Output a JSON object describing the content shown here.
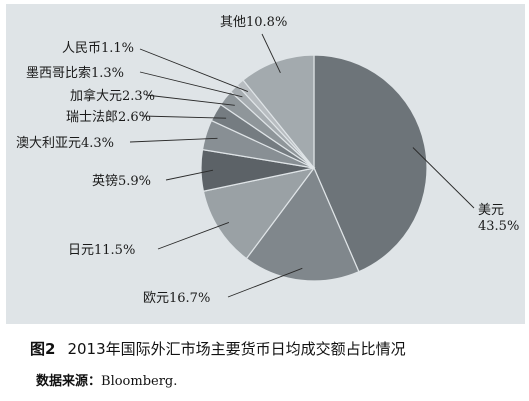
{
  "chart_data": {
    "type": "pie",
    "slices": [
      {
        "name": "美元",
        "value": 43.5,
        "label_lines": [
          "美元",
          "43.5%"
        ],
        "color": "#6d7479"
      },
      {
        "name": "欧元",
        "value": 16.7,
        "label_lines": [
          "欧元16.7%"
        ],
        "color": "#80878c"
      },
      {
        "name": "日元",
        "value": 11.5,
        "label_lines": [
          "日元11.5%"
        ],
        "color": "#9aa1a5"
      },
      {
        "name": "英镑",
        "value": 5.9,
        "label_lines": [
          "英镑5.9%"
        ],
        "color": "#5c6267"
      },
      {
        "name": "澳大利亚元",
        "value": 4.3,
        "label_lines": [
          "澳大利亚元4.3%"
        ],
        "color": "#888f94"
      },
      {
        "name": "瑞士法郎",
        "value": 2.6,
        "label_lines": [
          "瑞士法郎2.6%"
        ],
        "color": "#757c81"
      },
      {
        "name": "加拿大元",
        "value": 2.3,
        "label_lines": [
          "加拿大元2.3%"
        ],
        "color": "#8f969a"
      },
      {
        "name": "墨西哥比索",
        "value": 1.3,
        "label_lines": [
          "墨西哥比索1.3%"
        ],
        "color": "#a7adb1"
      },
      {
        "name": "人民币",
        "value": 1.1,
        "label_lines": [
          "人民币1.1%"
        ],
        "color": "#b8bdc1"
      },
      {
        "name": "其他",
        "value": 10.8,
        "label_lines": [
          "其他10.8%"
        ],
        "color": "#a3aaae"
      }
    ],
    "legend": "none"
  },
  "caption": {
    "figure_number": "图2",
    "title": "2013年国际外汇市场主要货币日均成交额占比情况"
  },
  "source": {
    "label": "数据来源：",
    "text": "Bloomberg."
  }
}
